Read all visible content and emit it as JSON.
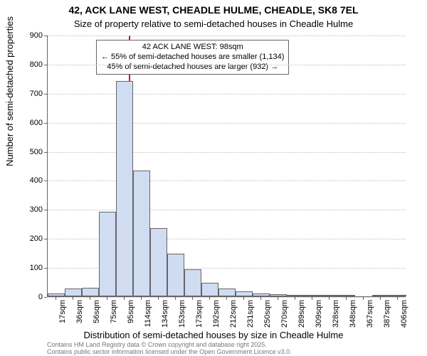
{
  "title": "42, ACK LANE WEST, CHEADLE HULME, CHEADLE, SK8 7EL",
  "subtitle": "Size of property relative to semi-detached houses in Cheadle Hulme",
  "ylabel": "Number of semi-detached properties",
  "xlabel": "Distribution of semi-detached houses by size in Cheadle Hulme",
  "title_fontsize": 14,
  "subtitle_fontsize": 13,
  "chart": {
    "type": "histogram",
    "background_color": "#ffffff",
    "grid_color": "#bfbfbf",
    "axis_color": "#666666",
    "bar_fill": "#cfdcf2",
    "bar_border": "#666666",
    "ref_line_color": "#e01010",
    "tick_fontsize": 11,
    "label_fontsize": 13,
    "ylim": [
      0,
      900
    ],
    "yticks": [
      0,
      100,
      200,
      300,
      400,
      500,
      600,
      700,
      800,
      900
    ],
    "bars": [
      {
        "x_label": "17sqm",
        "value": 10
      },
      {
        "x_label": "36sqm",
        "value": 28
      },
      {
        "x_label": "56sqm",
        "value": 30
      },
      {
        "x_label": "75sqm",
        "value": 292
      },
      {
        "x_label": "95sqm",
        "value": 740
      },
      {
        "x_label": "114sqm",
        "value": 432
      },
      {
        "x_label": "134sqm",
        "value": 236
      },
      {
        "x_label": "153sqm",
        "value": 148
      },
      {
        "x_label": "173sqm",
        "value": 92
      },
      {
        "x_label": "192sqm",
        "value": 46
      },
      {
        "x_label": "212sqm",
        "value": 28
      },
      {
        "x_label": "231sqm",
        "value": 18
      },
      {
        "x_label": "250sqm",
        "value": 10
      },
      {
        "x_label": "270sqm",
        "value": 8
      },
      {
        "x_label": "289sqm",
        "value": 3
      },
      {
        "x_label": "309sqm",
        "value": 3
      },
      {
        "x_label": "328sqm",
        "value": 3
      },
      {
        "x_label": "348sqm",
        "value": 2
      },
      {
        "x_label": "367sqm",
        "value": 0
      },
      {
        "x_label": "387sqm",
        "value": 2
      },
      {
        "x_label": "406sqm",
        "value": 2
      }
    ],
    "ref_value_sqm": 98,
    "annotation": {
      "line1": "42 ACK LANE WEST: 98sqm",
      "line2": "← 55% of semi-detached houses are smaller (1,134)",
      "line3": "45% of semi-detached houses are larger (932) →"
    }
  },
  "footer": {
    "line1": "Contains HM Land Registry data © Crown copyright and database right 2025.",
    "line2": "Contains public sector information licensed under the Open Government Licence v3.0."
  }
}
